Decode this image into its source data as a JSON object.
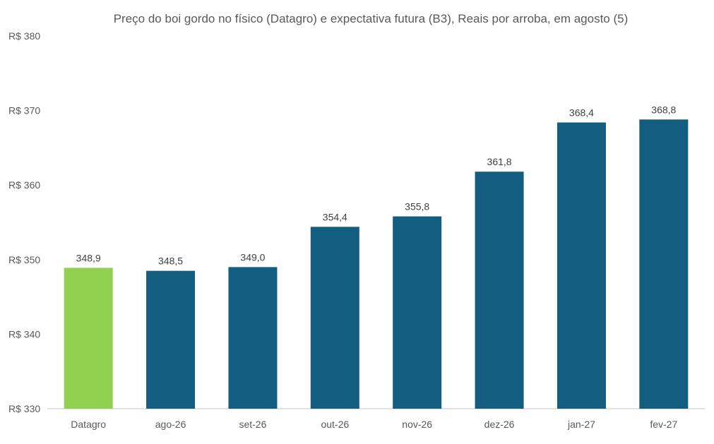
{
  "chart_data": {
    "type": "bar",
    "title": "Preço do boi gordo no físico (Datagro)  e expectativa futura (B3), Reais por arroba, em agosto (5)",
    "xlabel": "",
    "ylabel": "",
    "categories": [
      "Datagro",
      "ago-26",
      "set-26",
      "out-26",
      "nov-26",
      "dez-26",
      "jan-27",
      "fev-27"
    ],
    "values": [
      348.9,
      348.5,
      349.0,
      354.4,
      355.8,
      361.8,
      368.4,
      368.8
    ],
    "value_labels": [
      "348,9",
      "348,5",
      "349,0",
      "354,4",
      "355,8",
      "361,8",
      "368,4",
      "368,8"
    ],
    "ylim": [
      330,
      380
    ],
    "y_ticks": [
      330,
      340,
      350,
      360,
      370,
      380
    ],
    "y_tick_labels": [
      "R$ 330",
      "R$ 340",
      "R$ 350",
      "R$ 360",
      "R$ 370",
      "R$ 380"
    ],
    "grid": false,
    "legend": "none",
    "colors": {
      "highlight": "#92d050",
      "bars": "#135e80",
      "axis": "#d9d9d9",
      "text": "#595959"
    }
  }
}
